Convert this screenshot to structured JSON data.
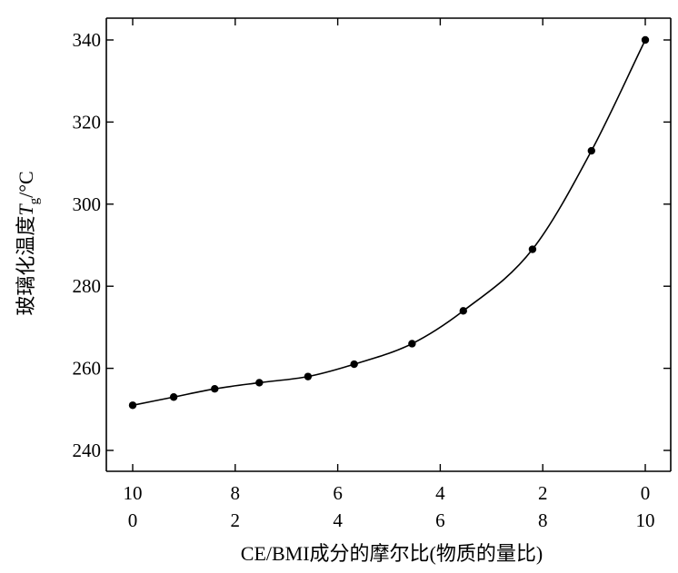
{
  "chart_data": {
    "type": "scatter",
    "xlabel": "CE/BMI成分的摩尔比(物质的量比)",
    "ylabel_main": "玻璃化温度",
    "ylabel_symbol": "T",
    "ylabel_subscript": "g",
    "ylabel_unit": "/°C",
    "xlim": [
      0,
      10
    ],
    "ylim": [
      235,
      345
    ],
    "x_ticks_top_row": [
      "10",
      "8",
      "6",
      "4",
      "2",
      "0"
    ],
    "x_ticks_bottom_row": [
      "0",
      "2",
      "4",
      "6",
      "8",
      "10"
    ],
    "x_tick_values": [
      0,
      2,
      4,
      6,
      8,
      10
    ],
    "y_ticks": [
      "240",
      "260",
      "280",
      "300",
      "320",
      "340"
    ],
    "y_tick_values": [
      240,
      260,
      280,
      300,
      320,
      340
    ],
    "grid": false,
    "series": [
      {
        "points": [
          {
            "x": 0.0,
            "y": 251.0
          },
          {
            "x": 0.8,
            "y": 253.0
          },
          {
            "x": 1.6,
            "y": 255.0
          },
          {
            "x": 2.47,
            "y": 256.5
          },
          {
            "x": 3.42,
            "y": 258.0
          },
          {
            "x": 4.32,
            "y": 261.0
          },
          {
            "x": 5.45,
            "y": 266.0
          },
          {
            "x": 6.45,
            "y": 274.0
          },
          {
            "x": 7.8,
            "y": 289.0
          },
          {
            "x": 8.95,
            "y": 313.0
          },
          {
            "x": 10.0,
            "y": 340.0
          }
        ]
      }
    ]
  }
}
